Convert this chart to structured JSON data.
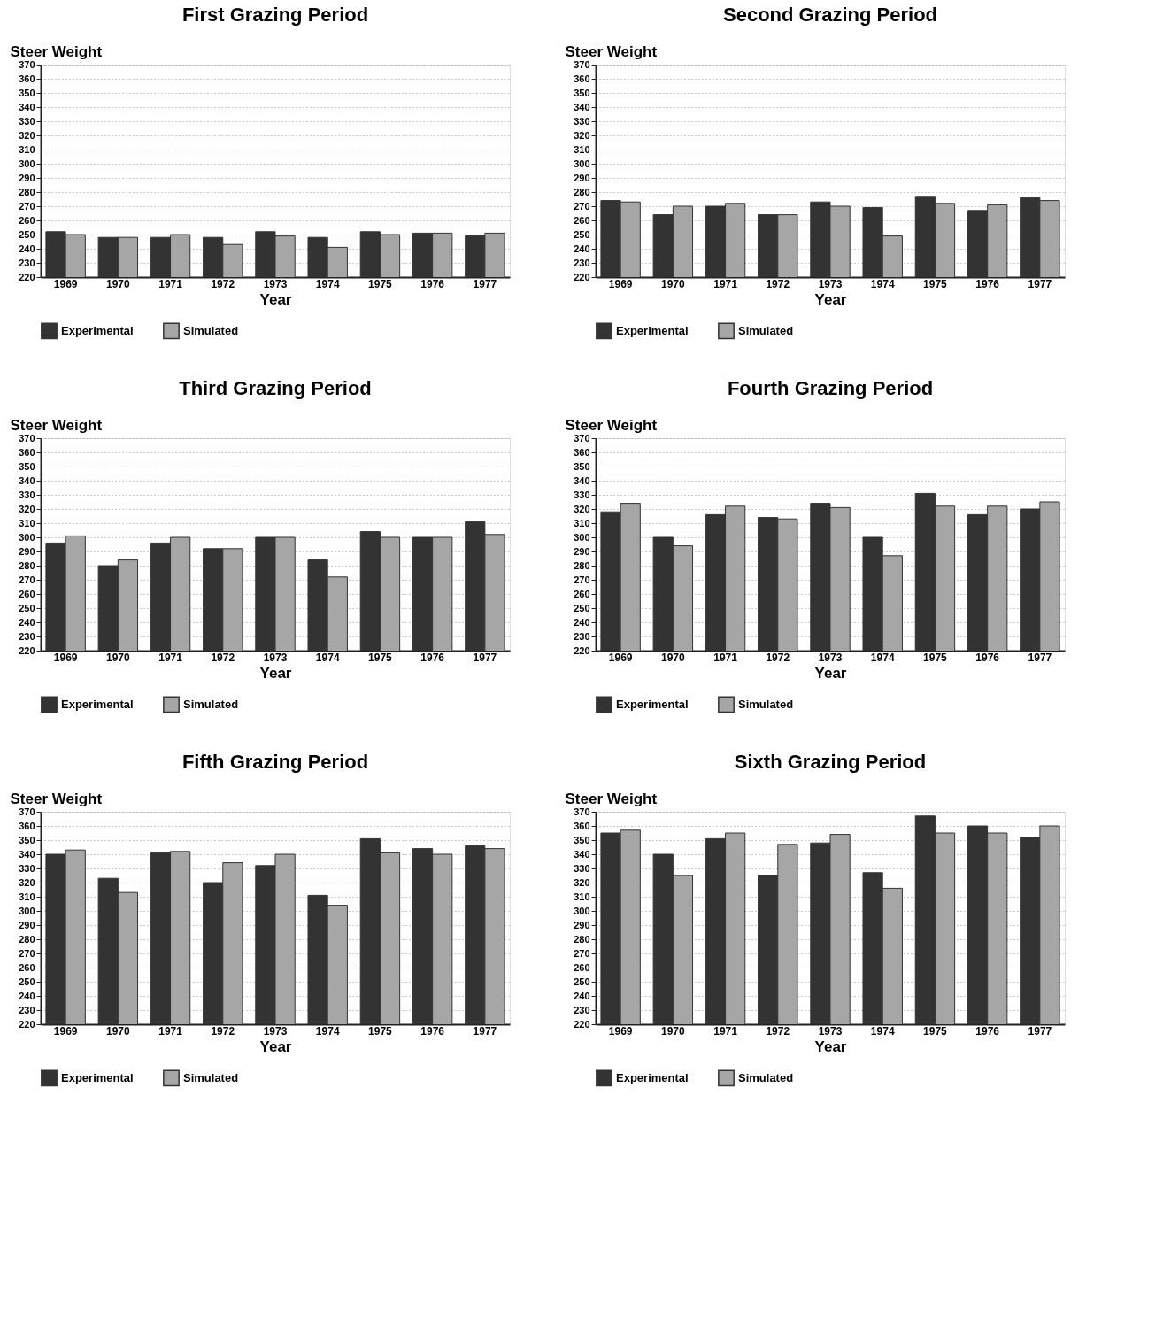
{
  "chart_data": [
    {
      "type": "bar",
      "title": "First Grazing Period",
      "xlabel": "Year",
      "ylabel": "Steer Weight",
      "categories": [
        "1969",
        "1970",
        "1971",
        "1972",
        "1973",
        "1974",
        "1975",
        "1976",
        "1977"
      ],
      "ylim": [
        220,
        370
      ],
      "yticks": [
        220,
        230,
        240,
        250,
        260,
        270,
        280,
        290,
        300,
        310,
        320,
        330,
        340,
        350,
        360,
        370
      ],
      "grid": "y",
      "legend": "bottom",
      "series": [
        {
          "name": "Experimental",
          "color": "#333333",
          "values": [
            252,
            248,
            248,
            248,
            252,
            248,
            252,
            251,
            249
          ]
        },
        {
          "name": "Simulated",
          "color": "#a6a6a6",
          "values": [
            250,
            248,
            250,
            243,
            249,
            241,
            250,
            251,
            251
          ]
        }
      ]
    },
    {
      "type": "bar",
      "title": "Second Grazing Period",
      "xlabel": "Year",
      "ylabel": "Steer Weight",
      "categories": [
        "1969",
        "1970",
        "1971",
        "1972",
        "1973",
        "1974",
        "1975",
        "1976",
        "1977"
      ],
      "ylim": [
        220,
        370
      ],
      "yticks": [
        220,
        230,
        240,
        250,
        260,
        270,
        280,
        290,
        300,
        310,
        320,
        330,
        340,
        350,
        360,
        370
      ],
      "grid": "y",
      "legend": "bottom",
      "series": [
        {
          "name": "Experimental",
          "color": "#333333",
          "values": [
            274,
            264,
            270,
            264,
            273,
            269,
            277,
            267,
            276
          ]
        },
        {
          "name": "Simulated",
          "color": "#a6a6a6",
          "values": [
            273,
            270,
            272,
            264,
            270,
            249,
            272,
            271,
            274
          ]
        }
      ]
    },
    {
      "type": "bar",
      "title": "Third Grazing Period",
      "xlabel": "Year",
      "ylabel": "Steer Weight",
      "categories": [
        "1969",
        "1970",
        "1971",
        "1972",
        "1973",
        "1974",
        "1975",
        "1976",
        "1977"
      ],
      "ylim": [
        220,
        370
      ],
      "yticks": [
        220,
        230,
        240,
        250,
        260,
        270,
        280,
        290,
        300,
        310,
        320,
        330,
        340,
        350,
        360,
        370
      ],
      "grid": "y",
      "legend": "bottom",
      "series": [
        {
          "name": "Experimental",
          "color": "#333333",
          "values": [
            296,
            280,
            296,
            292,
            300,
            284,
            304,
            300,
            311
          ]
        },
        {
          "name": "Simulated",
          "color": "#a6a6a6",
          "values": [
            301,
            284,
            300,
            292,
            300,
            272,
            300,
            300,
            302
          ]
        }
      ]
    },
    {
      "type": "bar",
      "title": "Fourth Grazing Period",
      "xlabel": "Year",
      "ylabel": "Steer Weight",
      "categories": [
        "1969",
        "1970",
        "1971",
        "1972",
        "1973",
        "1974",
        "1975",
        "1976",
        "1977"
      ],
      "ylim": [
        220,
        370
      ],
      "yticks": [
        220,
        230,
        240,
        250,
        260,
        270,
        280,
        290,
        300,
        310,
        320,
        330,
        340,
        350,
        360,
        370
      ],
      "grid": "y",
      "legend": "bottom",
      "series": [
        {
          "name": "Experimental",
          "color": "#333333",
          "values": [
            318,
            300,
            316,
            314,
            324,
            300,
            331,
            316,
            320
          ]
        },
        {
          "name": "Simulated",
          "color": "#a6a6a6",
          "values": [
            324,
            294,
            322,
            313,
            321,
            287,
            322,
            322,
            325
          ]
        }
      ]
    },
    {
      "type": "bar",
      "title": "Fifth Grazing Period",
      "xlabel": "Year",
      "ylabel": "Steer Weight",
      "categories": [
        "1969",
        "1970",
        "1971",
        "1972",
        "1973",
        "1974",
        "1975",
        "1976",
        "1977"
      ],
      "ylim": [
        220,
        370
      ],
      "yticks": [
        220,
        230,
        240,
        250,
        260,
        270,
        280,
        290,
        300,
        310,
        320,
        330,
        340,
        350,
        360,
        370
      ],
      "grid": "y",
      "legend": "bottom",
      "series": [
        {
          "name": "Experimental",
          "color": "#333333",
          "values": [
            340,
            323,
            341,
            320,
            332,
            311,
            351,
            344,
            346
          ]
        },
        {
          "name": "Simulated",
          "color": "#a6a6a6",
          "values": [
            343,
            313,
            342,
            334,
            340,
            304,
            341,
            340,
            344
          ]
        }
      ]
    },
    {
      "type": "bar",
      "title": "Sixth Grazing Period",
      "xlabel": "Year",
      "ylabel": "Steer Weight",
      "categories": [
        "1969",
        "1970",
        "1971",
        "1972",
        "1973",
        "1974",
        "1975",
        "1976",
        "1977"
      ],
      "ylim": [
        220,
        370
      ],
      "yticks": [
        220,
        230,
        240,
        250,
        260,
        270,
        280,
        290,
        300,
        310,
        320,
        330,
        340,
        350,
        360,
        370
      ],
      "grid": "y",
      "legend": "bottom",
      "series": [
        {
          "name": "Experimental",
          "color": "#333333",
          "values": [
            355,
            340,
            351,
            325,
            348,
            327,
            367,
            360,
            352
          ]
        },
        {
          "name": "Simulated",
          "color": "#a6a6a6",
          "values": [
            357,
            325,
            355,
            347,
            354,
            316,
            355,
            355,
            360
          ]
        }
      ]
    }
  ]
}
